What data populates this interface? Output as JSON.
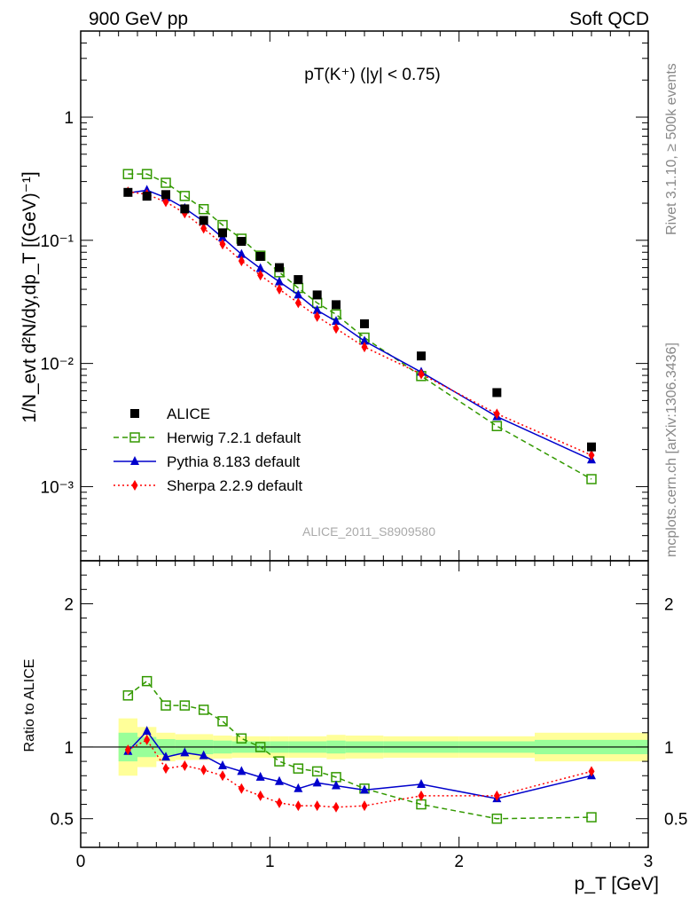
{
  "header": {
    "left": "900 GeV pp",
    "right": "Soft QCD"
  },
  "side": {
    "rivet": "Rivet 3.1.10, ≥ 500k events",
    "mcplots": "mcplots.cern.ch [arXiv:1306.3436]"
  },
  "chart_data": {
    "type": "line",
    "title": "pT(K⁺) (|y| < 0.75)",
    "watermark": "ALICE_2011_S8909580",
    "xlabel": "p_T [GeV]",
    "ylabel": "1/N_evt d²N/dy,dp_T [(GeV)⁻¹]",
    "ratio_ylabel": "Ratio to ALICE",
    "xlim": [
      0,
      3
    ],
    "ylim_main": [
      0.00025,
      5
    ],
    "ylim_ratio": [
      0.3,
      2.3
    ],
    "xticks": [
      "0",
      "1",
      "2",
      "3"
    ],
    "yticks_main": [
      "10⁻³",
      "10⁻²",
      "10⁻¹",
      "1"
    ],
    "yticks_ratio": [
      "0.5",
      "1",
      "2"
    ],
    "x": [
      0.25,
      0.35,
      0.45,
      0.55,
      0.65,
      0.75,
      0.85,
      0.95,
      1.05,
      1.15,
      1.25,
      1.35,
      1.5,
      1.8,
      2.2,
      2.7
    ],
    "data": {
      "name": "ALICE",
      "values": [
        0.245,
        0.228,
        0.235,
        0.18,
        0.145,
        0.115,
        0.098,
        0.074,
        0.06,
        0.048,
        0.036,
        0.03,
        0.021,
        0.0115,
        0.0058,
        0.0021
      ]
    },
    "series": [
      {
        "name": "Herwig 7.2.1 default",
        "color": "#339900",
        "dash": "6,4",
        "marker": "open-square",
        "values": [
          0.345,
          0.345,
          0.293,
          0.229,
          0.179,
          0.133,
          0.103,
          0.075,
          0.055,
          0.041,
          0.031,
          0.025,
          0.0162,
          0.0079,
          0.0031,
          0.00115
        ],
        "ratio": [
          1.36,
          1.46,
          1.29,
          1.29,
          1.26,
          1.18,
          1.06,
          1.0,
          0.9,
          0.85,
          0.83,
          0.79,
          0.71,
          0.6,
          0.5,
          0.51
        ]
      },
      {
        "name": "Pythia 8.183 default",
        "color": "#0000cc",
        "dash": "",
        "marker": "triangle",
        "values": [
          0.242,
          0.255,
          0.222,
          0.182,
          0.142,
          0.105,
          0.077,
          0.059,
          0.046,
          0.036,
          0.027,
          0.022,
          0.0152,
          0.0085,
          0.0037,
          0.00165
        ],
        "ratio": [
          0.97,
          1.11,
          0.93,
          0.96,
          0.94,
          0.87,
          0.83,
          0.79,
          0.76,
          0.71,
          0.75,
          0.73,
          0.7,
          0.74,
          0.64,
          0.8
        ]
      },
      {
        "name": "Sherpa 2.2.9 default",
        "color": "#ff0000",
        "dash": "2,3",
        "marker": "diamond",
        "values": [
          0.248,
          0.236,
          0.205,
          0.166,
          0.125,
          0.093,
          0.068,
          0.052,
          0.04,
          0.031,
          0.024,
          0.0192,
          0.0136,
          0.0082,
          0.0039,
          0.0018
        ],
        "ratio": [
          0.98,
          1.05,
          0.85,
          0.87,
          0.84,
          0.8,
          0.71,
          0.66,
          0.61,
          0.59,
          0.59,
          0.58,
          0.59,
          0.66,
          0.66,
          0.83
        ]
      }
    ],
    "bands": {
      "edges": [
        0.2,
        0.3,
        0.4,
        0.5,
        0.6,
        0.7,
        0.8,
        0.9,
        1.0,
        1.1,
        1.2,
        1.3,
        1.4,
        1.6,
        2.0,
        2.4,
        3.0
      ],
      "green": [
        0.1,
        0.07,
        0.055,
        0.05,
        0.05,
        0.045,
        0.04,
        0.04,
        0.04,
        0.04,
        0.04,
        0.045,
        0.04,
        0.04,
        0.04,
        0.05
      ],
      "yellow": [
        0.2,
        0.14,
        0.1,
        0.09,
        0.09,
        0.08,
        0.075,
        0.075,
        0.075,
        0.075,
        0.075,
        0.085,
        0.08,
        0.075,
        0.075,
        0.1
      ]
    }
  }
}
